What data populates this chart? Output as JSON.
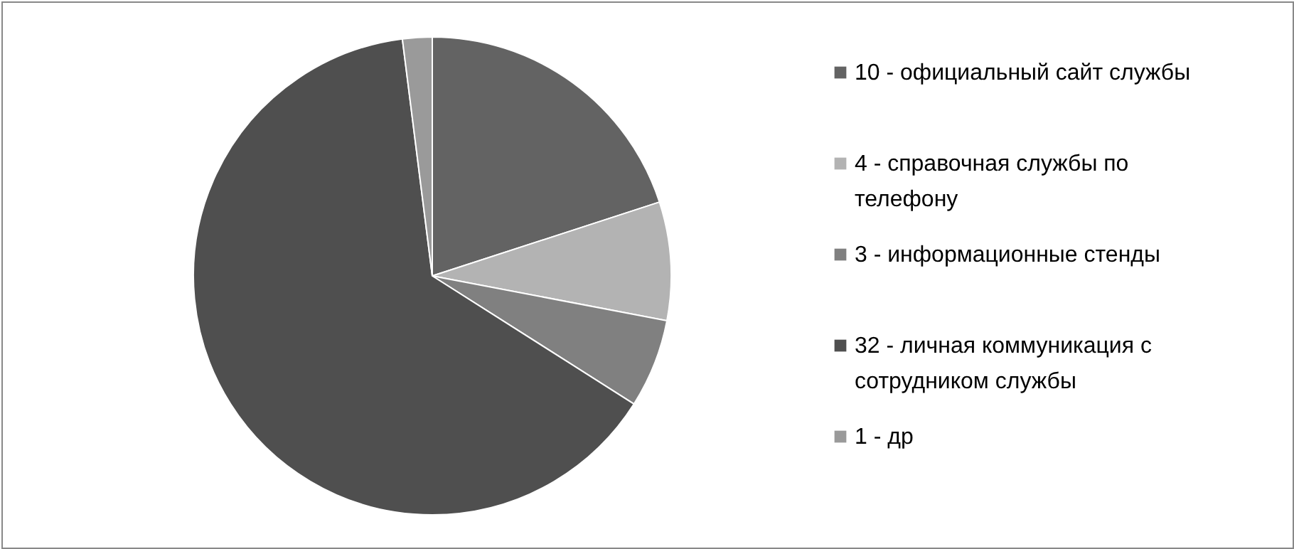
{
  "chart_data": {
    "type": "pie",
    "categories": [
      "10 - официальный сайт службы",
      "4 - справочная службы по телефону",
      "3 - информационные  стенды",
      "32 - личная коммуникация с сотрудником службы",
      "1 - др"
    ],
    "values": [
      10,
      4,
      3,
      32,
      1
    ],
    "colors": [
      "#636363",
      "#b3b3b3",
      "#808080",
      "#4f4f4f",
      "#9a9a9a"
    ],
    "legend": "right"
  }
}
